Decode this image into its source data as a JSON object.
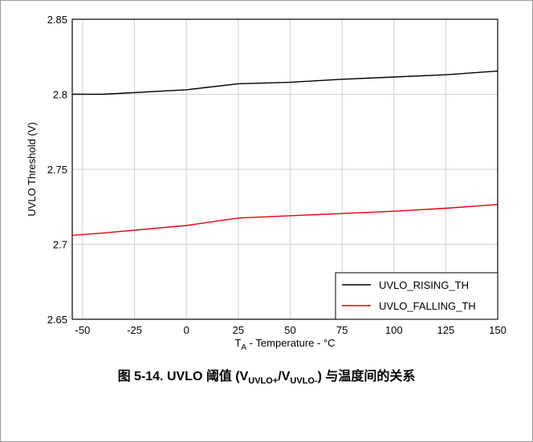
{
  "chart_data": {
    "type": "line",
    "title": "",
    "xlabel_main": "T",
    "xlabel_sub": "A",
    "xlabel_rest": " - Temperature - °C",
    "ylabel": "UVLO Threshold (V)",
    "xlim": [
      -55,
      150
    ],
    "ylim": [
      2.65,
      2.85
    ],
    "xticks": [
      -50,
      -25,
      0,
      25,
      50,
      75,
      100,
      125,
      150
    ],
    "yticks": [
      2.65,
      2.7,
      2.75,
      2.8,
      2.85
    ],
    "ytick_labels": [
      "2.65",
      "2.7",
      "2.75",
      "2.8",
      "2.85"
    ],
    "grid": true,
    "legend_position": "bottom-right",
    "series": [
      {
        "name": "UVLO_RISING_TH",
        "color": "#000000",
        "x": [
          -55,
          -40,
          0,
          25,
          50,
          75,
          100,
          125,
          150
        ],
        "y": [
          2.8,
          2.8,
          2.803,
          2.807,
          2.808,
          2.81,
          2.8115,
          2.813,
          2.8155
        ]
      },
      {
        "name": "UVLO_FALLING_TH",
        "color": "#e8000b",
        "x": [
          -55,
          -40,
          0,
          25,
          50,
          75,
          100,
          125,
          150
        ],
        "y": [
          2.706,
          2.7075,
          2.7125,
          2.7175,
          2.719,
          2.7205,
          2.722,
          2.724,
          2.7265
        ]
      }
    ]
  },
  "caption": {
    "prefix": "图 5-14. UVLO 阈值 (V",
    "sub1": "UVLO+",
    "mid": "/V",
    "sub2": "UVLO-",
    "suffix": ") 与温度间的关系"
  }
}
